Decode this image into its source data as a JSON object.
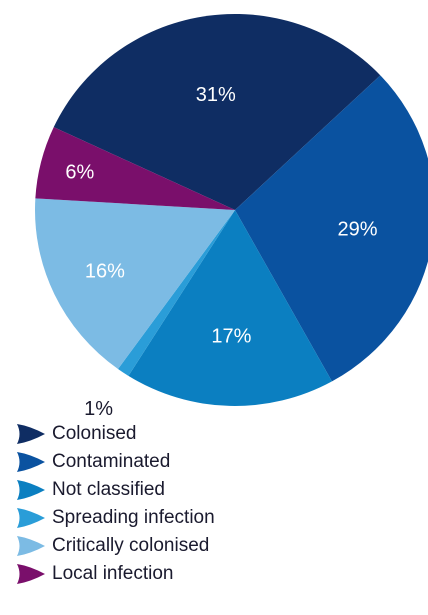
{
  "chart_data": {
    "type": "pie",
    "title": "",
    "slices": [
      {
        "label": "Colonised",
        "value": 31,
        "value_label": "31%",
        "color": "#0f2d63",
        "label_color": "#ffffff"
      },
      {
        "label": "Contaminated",
        "value": 29,
        "value_label": "29%",
        "color": "#0a52a0",
        "label_color": "#ffffff"
      },
      {
        "label": "Not classified",
        "value": 17,
        "value_label": "17%",
        "color": "#0b7fc1",
        "label_color": "#ffffff"
      },
      {
        "label": "Spreading infection",
        "value": 1,
        "value_label": "1%",
        "color": "#2a9dd8",
        "label_color": "#1a1a2e"
      },
      {
        "label": "Critically colonised",
        "value": 16,
        "value_label": "16%",
        "color": "#7cbbe4",
        "label_color": "#ffffff"
      },
      {
        "label": "Local infection",
        "value": 6,
        "value_label": "6%",
        "color": "#7a0f6b",
        "label_color": "#ffffff"
      }
    ],
    "legend_position": "bottom-left"
  }
}
